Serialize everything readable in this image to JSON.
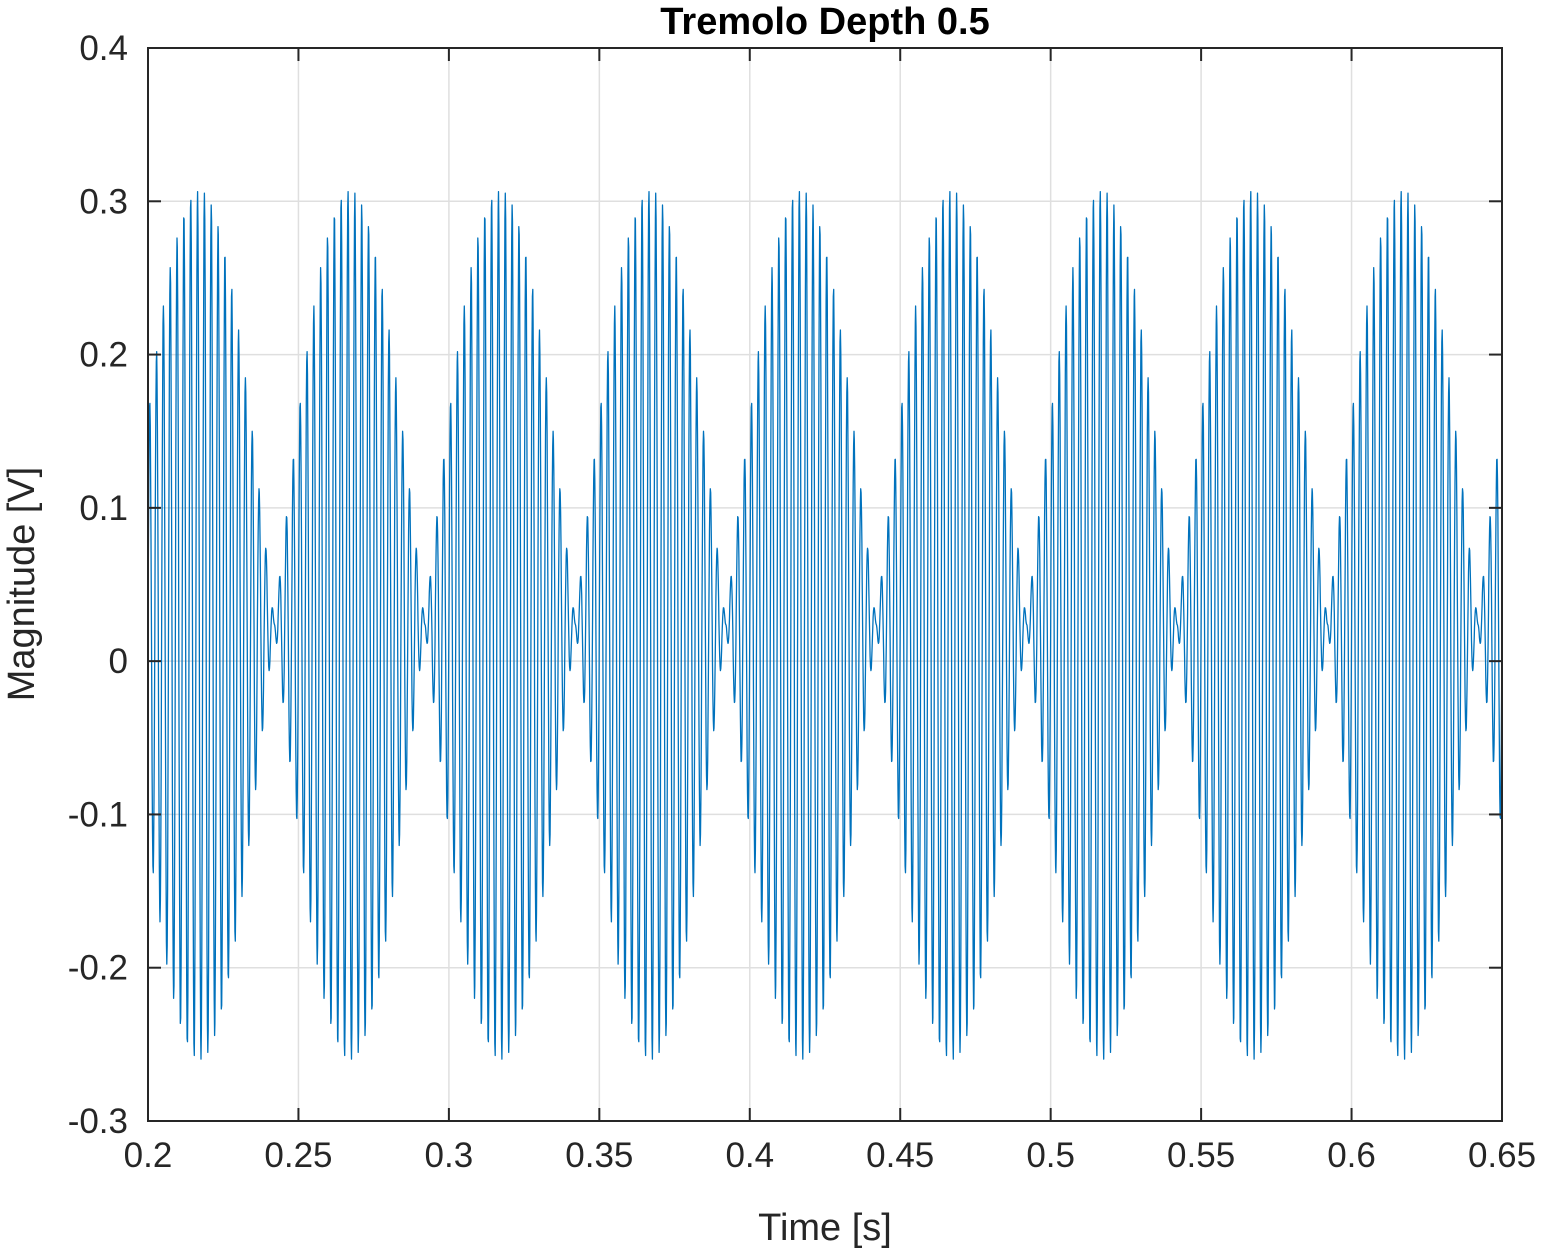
{
  "chart_data": {
    "type": "line",
    "title": "Tremolo Depth 0.5",
    "xlabel": "Time [s]",
    "ylabel": "Magnitude [V]",
    "xlim": [
      0.2,
      0.65
    ],
    "ylim": [
      -0.3,
      0.4
    ],
    "x_ticks": [
      0.2,
      0.25,
      0.3,
      0.35,
      0.4,
      0.45,
      0.5,
      0.55,
      0.6,
      0.65
    ],
    "x_tick_labels": [
      "0.2",
      "0.25",
      "0.3",
      "0.35",
      "0.4",
      "0.45",
      "0.5",
      "0.55",
      "0.6",
      "0.65"
    ],
    "y_ticks": [
      -0.3,
      -0.2,
      -0.1,
      0,
      0.1,
      0.2,
      0.3,
      0.4
    ],
    "y_tick_labels": [
      "-0.3",
      "-0.2",
      "-0.1",
      "0",
      "0.1",
      "0.2",
      "0.3",
      "0.4"
    ],
    "grid": true,
    "series": [
      {
        "color": "#0072BD",
        "signal": "amplitude-modulated sinusoid (tremolo)",
        "envelope_peaks_x": [
          0.217,
          0.267,
          0.317,
          0.367,
          0.417,
          0.467,
          0.517,
          0.567,
          0.617
        ],
        "envelope_nulls_x": [
          0.242,
          0.292,
          0.342,
          0.392,
          0.442,
          0.492,
          0.542,
          0.592,
          0.642
        ],
        "envelope_max": 0.307,
        "envelope_min": -0.26,
        "null_value": 0.024,
        "modulation_frequency_hz": 20,
        "carrier_frequency_hz": 440,
        "sample_step_s": 0.000125,
        "x": [],
        "y": []
      }
    ]
  }
}
